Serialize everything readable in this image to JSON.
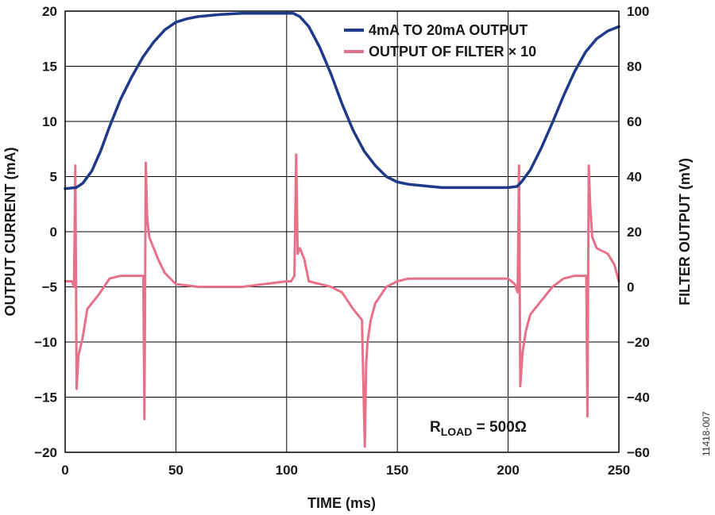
{
  "chart_data": {
    "type": "line",
    "xlabel": "TIME (ms)",
    "ylabel_left": "OUTPUT CURRENT (mA)",
    "ylabel_right": "FILTER OUTPUT (mV)",
    "xlim": [
      0,
      250
    ],
    "ylim_left": [
      -20,
      20
    ],
    "ylim_right": [
      -60,
      100
    ],
    "x_ticks": [
      "0",
      "50",
      "100",
      "150",
      "200",
      "250"
    ],
    "y_ticks_left": [
      "20",
      "15",
      "10",
      "5",
      "0",
      "−5",
      "−10",
      "−15",
      "−20"
    ],
    "y_ticks_right": [
      "100",
      "80",
      "60",
      "40",
      "20",
      "0",
      "−20",
      "−40",
      "−60"
    ],
    "grid": true,
    "legend_position": "top-right",
    "annotation": {
      "main": "R",
      "sub": "LOAD",
      "rest": " = 500Ω"
    },
    "figure_id": "11418-007",
    "series": [
      {
        "name": "4mA TO 20mA OUTPUT",
        "axis": "left",
        "color": "#1f3a8a",
        "x": [
          0,
          5,
          8,
          12,
          16,
          20,
          25,
          30,
          35,
          40,
          45,
          50,
          55,
          60,
          70,
          80,
          90,
          100,
          103,
          106,
          110,
          115,
          120,
          125,
          130,
          135,
          140,
          145,
          150,
          155,
          160,
          170,
          180,
          190,
          200,
          204,
          206,
          210,
          215,
          220,
          225,
          230,
          235,
          240,
          245,
          250
        ],
        "y": [
          3.9,
          4.0,
          4.4,
          5.5,
          7.3,
          9.5,
          12.0,
          14.0,
          15.8,
          17.2,
          18.3,
          19.0,
          19.3,
          19.5,
          19.7,
          19.8,
          19.8,
          19.8,
          19.8,
          19.5,
          18.6,
          16.7,
          14.3,
          11.6,
          9.2,
          7.3,
          6.0,
          5.0,
          4.5,
          4.3,
          4.2,
          4.0,
          4.0,
          4.0,
          4.0,
          4.1,
          4.5,
          5.6,
          7.6,
          9.9,
          12.3,
          14.5,
          16.3,
          17.5,
          18.2,
          18.6
        ]
      },
      {
        "name": "OUTPUT OF FILTER × 10",
        "axis": "right",
        "color": "#e8718a",
        "x": [
          0,
          3,
          4,
          4.6,
          5.2,
          6,
          8,
          10,
          15,
          20,
          25,
          30,
          34,
          35.3,
          35.8,
          36.4,
          37,
          38,
          40,
          42,
          45,
          50,
          60,
          70,
          80,
          90,
          100,
          102,
          103.5,
          104.3,
          105,
          106,
          108,
          110,
          115,
          120,
          125,
          130,
          134,
          135.3,
          135.9,
          136.5,
          138,
          140,
          145,
          150,
          155,
          160,
          170,
          180,
          190,
          200,
          203,
          204.3,
          204.9,
          205.5,
          206.5,
          208,
          210,
          215,
          220,
          225,
          230,
          234,
          235.3,
          235.8,
          236.4,
          237,
          238,
          240,
          245,
          248,
          250
        ],
        "y": [
          2,
          2,
          0,
          44,
          -37,
          -25,
          -18,
          -8,
          -3,
          3,
          4,
          4,
          4,
          4,
          -48,
          45,
          25,
          18,
          14,
          10,
          5,
          1,
          0,
          0,
          0,
          1,
          2,
          2,
          4,
          48,
          12,
          14,
          10,
          2,
          1,
          0,
          -2,
          -8,
          -12,
          -58,
          -28,
          -20,
          -12,
          -6,
          0,
          2,
          3,
          3,
          3,
          3,
          3,
          3,
          1,
          -2,
          44,
          -36,
          -24,
          -16,
          -10,
          -5,
          0,
          3,
          4,
          4,
          4,
          -47,
          44,
          30,
          18,
          14,
          12,
          8,
          2
        ]
      }
    ]
  }
}
